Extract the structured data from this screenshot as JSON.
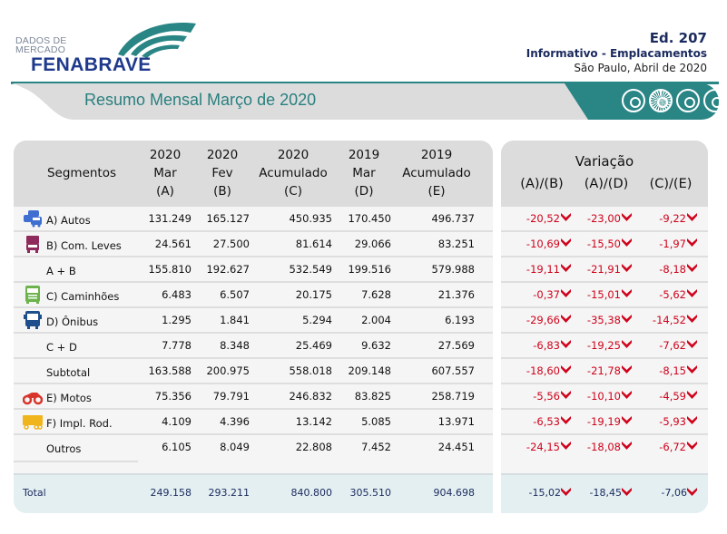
{
  "header": {
    "logo_top": "DADOS DE",
    "logo_mid": "MERCADO",
    "logo_brand": "FENABRAVE",
    "edition": "Ed. 207",
    "subtitle": "Informativo - Emplacamentos",
    "location_date": "São Paulo, Abril de 2020",
    "banner_title": "Resumo Mensal Março de 2020",
    "banner_icons": [
      "wheel-icon",
      "wheel-icon",
      "wheel-icon",
      "wheel-icon"
    ]
  },
  "colors": {
    "teal": "#2a8585",
    "brand_blue": "#1f3a8c",
    "negative_red": "#d0021b",
    "header_gray": "#dcdcdc",
    "total_bg": "#e3eff1"
  },
  "table": {
    "columns": [
      {
        "label": "Segmentos"
      },
      {
        "year": "2020",
        "period": "Mar",
        "code": "(A)"
      },
      {
        "year": "2020",
        "period": "Fev",
        "code": "(B)"
      },
      {
        "year": "2020",
        "period": "Acumulado",
        "code": "(C)"
      },
      {
        "year": "2019",
        "period": "Mar",
        "code": "(D)"
      },
      {
        "year": "2019",
        "period": "Acumulado",
        "code": "(E)"
      }
    ],
    "variation": {
      "title": "Variação",
      "columns": [
        "(A)/(B)",
        "(A)/(D)",
        "(C)/(E)"
      ]
    },
    "rows": [
      {
        "segment": "A) Autos",
        "icon": "cars-icon",
        "a": "131.249",
        "b": "165.127",
        "c": "450.935",
        "d": "170.450",
        "e": "496.737",
        "ab": "-20,52",
        "ad": "-23,00",
        "ce": "-9,22"
      },
      {
        "segment": "B) Com. Leves",
        "icon": "truck-icon",
        "a": "24.561",
        "b": "27.500",
        "c": "81.614",
        "d": "29.066",
        "e": "83.251",
        "ab": "-10,69",
        "ad": "-15,50",
        "ce": "-1,97"
      },
      {
        "segment": "A + B",
        "icon": "",
        "a": "155.810",
        "b": "192.627",
        "c": "532.549",
        "d": "199.516",
        "e": "579.988",
        "ab": "-19,11",
        "ad": "-21,91",
        "ce": "-8,18"
      },
      {
        "segment": "C) Caminhões",
        "icon": "lorry-icon",
        "a": "6.483",
        "b": "6.507",
        "c": "20.175",
        "d": "7.628",
        "e": "21.376",
        "ab": "-0,37",
        "ad": "-15,01",
        "ce": "-5,62"
      },
      {
        "segment": "D) Ônibus",
        "icon": "bus-icon",
        "a": "1.295",
        "b": "1.841",
        "c": "5.294",
        "d": "2.004",
        "e": "6.193",
        "ab": "-29,66",
        "ad": "-35,38",
        "ce": "-14,52"
      },
      {
        "segment": "C + D",
        "icon": "",
        "a": "7.778",
        "b": "8.348",
        "c": "25.469",
        "d": "9.632",
        "e": "27.569",
        "ab": "-6,83",
        "ad": "-19,25",
        "ce": "-7,62"
      },
      {
        "segment": "Subtotal",
        "icon": "",
        "a": "163.588",
        "b": "200.975",
        "c": "558.018",
        "d": "209.148",
        "e": "607.557",
        "ab": "-18,60",
        "ad": "-21,78",
        "ce": "-8,15"
      },
      {
        "segment": "E) Motos",
        "icon": "motorcycle-icon",
        "a": "75.356",
        "b": "79.791",
        "c": "246.832",
        "d": "83.825",
        "e": "258.719",
        "ab": "-5,56",
        "ad": "-10,10",
        "ce": "-4,59"
      },
      {
        "segment": "F) Impl. Rod.",
        "icon": "trailer-icon",
        "a": "4.109",
        "b": "4.396",
        "c": "13.142",
        "d": "5.085",
        "e": "13.971",
        "ab": "-6,53",
        "ad": "-19,19",
        "ce": "-5,93"
      },
      {
        "segment": "Outros",
        "icon": "",
        "a": "6.105",
        "b": "8.049",
        "c": "22.808",
        "d": "7.452",
        "e": "24.451",
        "ab": "-24,15",
        "ad": "-18,08",
        "ce": "-6,72"
      }
    ],
    "total": {
      "segment": "Total",
      "a": "249.158",
      "b": "293.211",
      "c": "840.800",
      "d": "305.510",
      "e": "904.698",
      "ab": "-15,02",
      "ad": "-18,45",
      "ce": "-7,06"
    }
  }
}
